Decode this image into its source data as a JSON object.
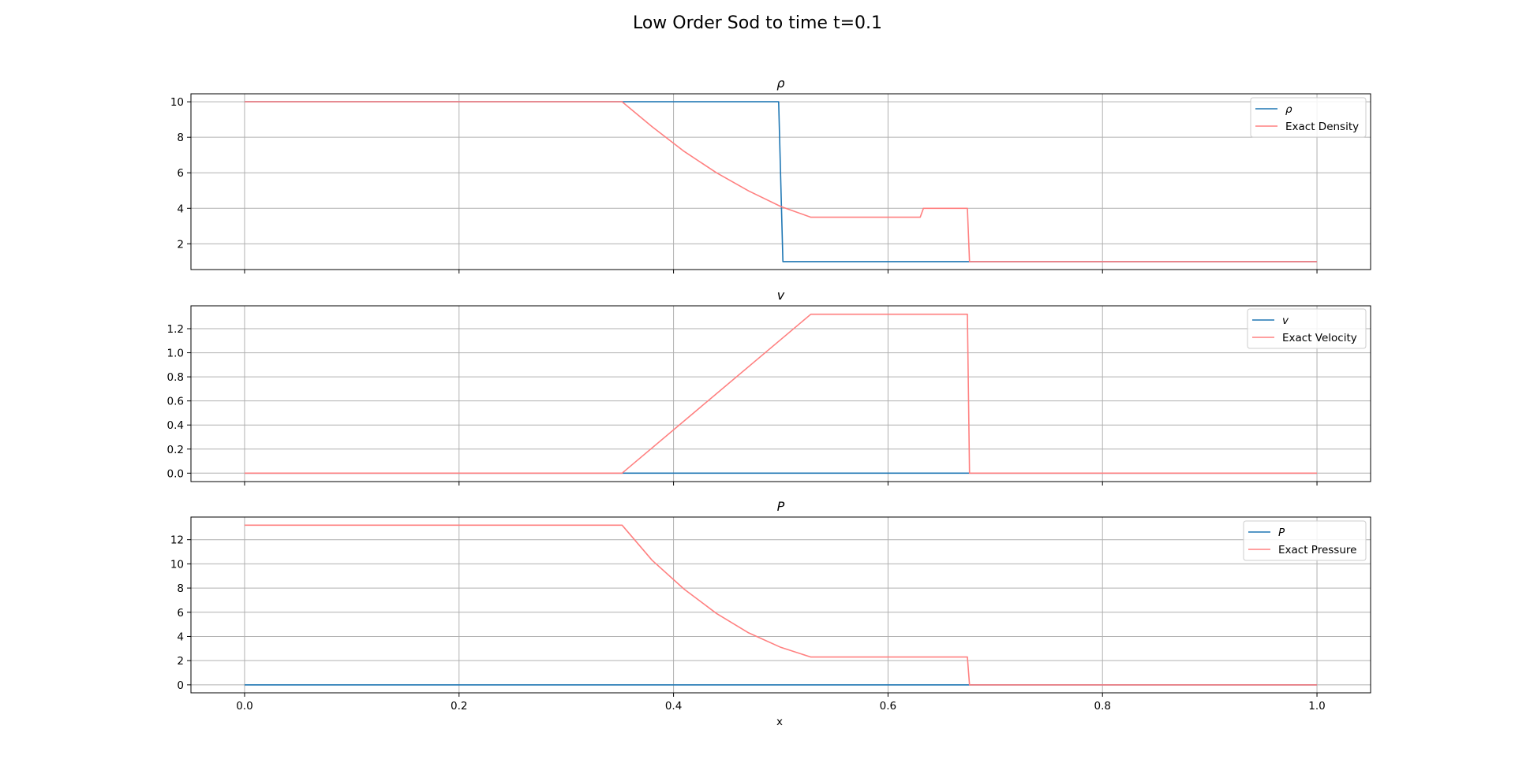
{
  "figure": {
    "suptitle": "Low Order Sod to time t=0.1",
    "xlabel": "x",
    "x_ticks": [
      "0.0",
      "0.2",
      "0.4",
      "0.6",
      "0.8",
      "1.0"
    ],
    "colors": {
      "numeric": "#1f77b4",
      "exact": "#ff8080",
      "grid": "#b0b0b0"
    }
  },
  "chart_data": [
    {
      "type": "line",
      "title": "ρ",
      "xlim": [
        -0.05,
        1.05
      ],
      "ylim": [
        0.55,
        10.45
      ],
      "xticks": [
        0.0,
        0.2,
        0.4,
        0.6,
        0.8,
        1.0
      ],
      "yticks": [
        2,
        4,
        6,
        8,
        10
      ],
      "ytick_labels": [
        "2",
        "4",
        "6",
        "8",
        "10"
      ],
      "grid": true,
      "legend_loc": "upper right",
      "series": [
        {
          "name": "ρ",
          "color": "#1f77b4",
          "x": [
            0.0,
            0.498,
            0.502,
            1.0
          ],
          "y": [
            10.0,
            10.0,
            1.0,
            1.0
          ]
        },
        {
          "name": "Exact Density",
          "color": "#ff8080",
          "x": [
            0.0,
            0.352,
            0.38,
            0.41,
            0.44,
            0.47,
            0.5,
            0.528,
            0.63,
            0.633,
            0.674,
            0.676,
            1.0
          ],
          "y": [
            10.0,
            10.0,
            8.6,
            7.2,
            6.0,
            4.98,
            4.1,
            3.5,
            3.5,
            4.0,
            4.0,
            1.0,
            1.0
          ]
        }
      ]
    },
    {
      "type": "line",
      "title": "v",
      "xlim": [
        -0.05,
        1.05
      ],
      "ylim": [
        -0.07,
        1.39
      ],
      "xticks": [
        0.0,
        0.2,
        0.4,
        0.6,
        0.8,
        1.0
      ],
      "yticks": [
        0.0,
        0.2,
        0.4,
        0.6,
        0.8,
        1.0,
        1.2
      ],
      "ytick_labels": [
        "0.0",
        "0.2",
        "0.4",
        "0.6",
        "0.8",
        "1.0",
        "1.2"
      ],
      "grid": true,
      "legend_loc": "upper right",
      "series": [
        {
          "name": "v",
          "color": "#1f77b4",
          "x": [
            0.0,
            1.0
          ],
          "y": [
            0.0,
            0.0
          ]
        },
        {
          "name": "Exact Velocity",
          "color": "#ff8080",
          "x": [
            0.0,
            0.352,
            0.528,
            0.674,
            0.676,
            1.0
          ],
          "y": [
            0.0,
            0.0,
            1.32,
            1.32,
            0.0,
            0.0
          ]
        }
      ]
    },
    {
      "type": "line",
      "title": "P",
      "xlim": [
        -0.05,
        1.05
      ],
      "ylim": [
        -0.66,
        13.87
      ],
      "xticks": [
        0.0,
        0.2,
        0.4,
        0.6,
        0.8,
        1.0
      ],
      "yticks": [
        0,
        2,
        4,
        6,
        8,
        10,
        12
      ],
      "ytick_labels": [
        "0",
        "2",
        "4",
        "6",
        "8",
        "10",
        "12"
      ],
      "grid": true,
      "legend_loc": "upper right",
      "series": [
        {
          "name": "P",
          "color": "#1f77b4",
          "x": [
            0.0,
            1.0
          ],
          "y": [
            0.0,
            0.0
          ]
        },
        {
          "name": "Exact Pressure",
          "color": "#ff8080",
          "x": [
            0.0,
            0.352,
            0.38,
            0.41,
            0.44,
            0.47,
            0.5,
            0.528,
            0.674,
            0.676,
            1.0
          ],
          "y": [
            13.2,
            13.2,
            10.3,
            7.9,
            5.9,
            4.3,
            3.1,
            2.3,
            2.3,
            0.0,
            0.0
          ]
        }
      ]
    }
  ]
}
